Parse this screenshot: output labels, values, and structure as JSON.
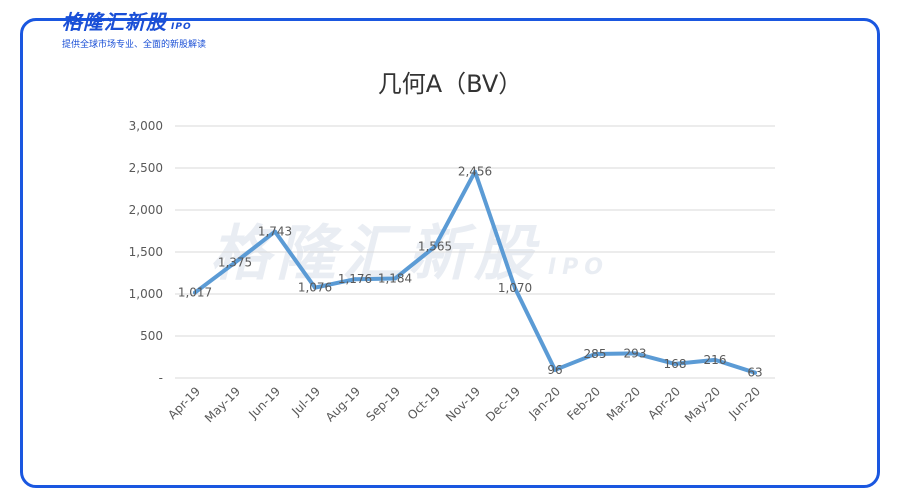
{
  "brand": {
    "name": "格隆汇新股",
    "tag": "IPO",
    "slogan": "提供全球市场专业、全面的新股解读"
  },
  "colors": {
    "frame": "#1a57e0",
    "line": "#5b9bd5",
    "grid": "#d9d9d9",
    "text": "#595959"
  },
  "chart_data": {
    "type": "line",
    "title": "几何A（BV）",
    "categories": [
      "Apr-19",
      "May-19",
      "Jun-19",
      "Jul-19",
      "Aug-19",
      "Sep-19",
      "Oct-19",
      "Nov-19",
      "Dec-19",
      "Jan-20",
      "Feb-20",
      "Mar-20",
      "Apr-20",
      "May-20",
      "Jun-20"
    ],
    "values": [
      1017,
      1375,
      1743,
      1076,
      1176,
      1184,
      1565,
      2456,
      1070,
      96,
      285,
      293,
      168,
      216,
      63
    ],
    "data_labels": [
      "1,017",
      "1,375",
      "1,743",
      "1,076",
      "1,176",
      "1,184",
      "1,565",
      "2,456",
      "1,070",
      "96",
      "285",
      "293",
      "168",
      "216",
      "63"
    ],
    "yticks": [
      "-",
      "500",
      "1,000",
      "1,500",
      "2,000",
      "2,500",
      "3,000"
    ],
    "ytick_values": [
      0,
      500,
      1000,
      1500,
      2000,
      2500,
      3000
    ],
    "ylim": [
      0,
      3000
    ],
    "grid": true,
    "legend": "none"
  }
}
